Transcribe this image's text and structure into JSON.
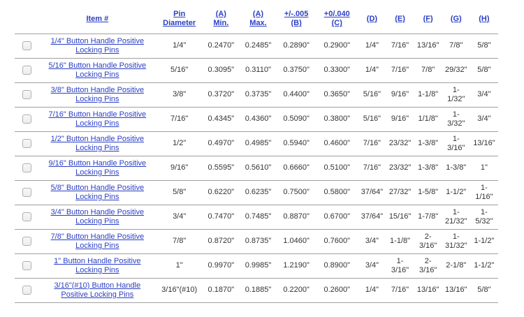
{
  "colors": {
    "link_blue": "#2b3fc4",
    "text": "#333333",
    "row_divider": "#a0a0a0",
    "checkbox_border": "#b0b0b0",
    "checkbox_background": "#f2f2f2"
  },
  "table": {
    "columns": [
      {
        "id": "item",
        "label": "Item #"
      },
      {
        "id": "pin",
        "label": "Pin\nDiameter"
      },
      {
        "id": "a_min",
        "label": "(A)\nMin."
      },
      {
        "id": "a_max",
        "label": "(A)\nMax."
      },
      {
        "id": "b",
        "label": "+/-.005\n(B)"
      },
      {
        "id": "c",
        "label": "+0/.040\n(C)"
      },
      {
        "id": "d",
        "label": "(D)"
      },
      {
        "id": "e",
        "label": "(E)"
      },
      {
        "id": "f",
        "label": "(F)"
      },
      {
        "id": "g",
        "label": "(G)"
      },
      {
        "id": "h",
        "label": "(H)"
      }
    ],
    "rows": [
      {
        "item": "1/4\" Button Handle Positive Locking Pins",
        "values": [
          "1/4\"",
          "0.2470\"",
          "0.2485\"",
          "0.2890\"",
          "0.2900\"",
          "1/4\"",
          "7/16\"",
          "13/16\"",
          "7/8\"",
          "5/8\""
        ]
      },
      {
        "item": "5/16\" Button Handle Positive Locking Pins",
        "values": [
          "5/16\"",
          "0.3095\"",
          "0.3110\"",
          "0.3750\"",
          "0.3300\"",
          "1/4\"",
          "7/16\"",
          "7/8\"",
          "29/32\"",
          "5/8\""
        ]
      },
      {
        "item": "3/8\" Button Handle Positive Locking Pins",
        "values": [
          "3/8\"",
          "0.3720\"",
          "0.3735\"",
          "0.4400\"",
          "0.3650\"",
          "5/16\"",
          "9/16\"",
          "1-1/8\"",
          "1-1/32\"",
          "3/4\""
        ]
      },
      {
        "item": "7/16\" Button Handle Positive Locking Pins",
        "values": [
          "7/16\"",
          "0.4345\"",
          "0.4360\"",
          "0.5090\"",
          "0.3800\"",
          "5/16\"",
          "9/16\"",
          "1/1/8\"",
          "1-3/32\"",
          "3/4\""
        ]
      },
      {
        "item": "1/2\" Button Handle Positive Locking Pins",
        "values": [
          "1/2\"",
          "0.4970\"",
          "0.4985\"",
          "0.5940\"",
          "0.4600\"",
          "7/16\"",
          "23/32\"",
          "1-3/8\"",
          "1-3/16\"",
          "13/16\""
        ]
      },
      {
        "item": "9/16\" Button Handle Positive Locking Pins",
        "values": [
          "9/16\"",
          "0.5595\"",
          "0.5610\"",
          "0.6660\"",
          "0.5100\"",
          "7/16\"",
          "23/32\"",
          "1-3/8\"",
          "1-3/8\"",
          "1\""
        ]
      },
      {
        "item": "5/8\" Button Handle Positive Locking Pins",
        "values": [
          "5/8\"",
          "0.6220\"",
          "0.6235\"",
          "0.7500\"",
          "0.5800\"",
          "37/64\"",
          "27/32\"",
          "1-5/8\"",
          "1-1/2\"",
          "1-1/16\""
        ]
      },
      {
        "item": "3/4\" Button Handle Positive Locking Pins",
        "values": [
          "3/4\"",
          "0.7470\"",
          "0.7485\"",
          "0.8870\"",
          "0.6700\"",
          "37/64\"",
          "15/16\"",
          "1-7/8\"",
          "1-21/32\"",
          "1-5/32\""
        ]
      },
      {
        "item": "7/8\" Button Handle Positive Locking Pins",
        "values": [
          "7/8\"",
          "0.8720\"",
          "0.8735\"",
          "1.0460\"",
          "0.7600\"",
          "3/4\"",
          "1-1/8\"",
          "2-3/16\"",
          "1-31/32\"",
          "1-1/2\""
        ]
      },
      {
        "item": "1\" Button Handle Positive Locking Pins",
        "values": [
          "1\"",
          "0.9970\"",
          "0.9985\"",
          "1.2190\"",
          "0.8900\"",
          "3/4\"",
          "1-3/16\"",
          "2-3/16\"",
          "2-1/8\"",
          "1-1/2\""
        ]
      },
      {
        "item": "3/16\"(#10) Button Handle Positive Locking Pins",
        "values": [
          "3/16\"(#10)",
          "0.1870\"",
          "0.1885\"",
          "0.2200\"",
          "0.2600\"",
          "1/4\"",
          "7/16\"",
          "13/16\"",
          "13/16\"",
          "5/8\""
        ]
      }
    ]
  }
}
